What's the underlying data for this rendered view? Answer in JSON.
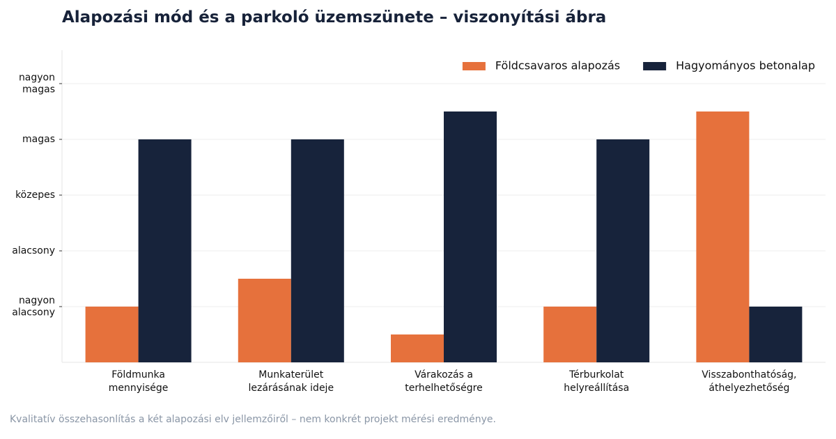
{
  "title": "Alapozási mód és a parkoló üzemszünete – viszonyítási ábra",
  "footnote": "Kvalitatív összehasonlítás a két alapozási elv jellemzőiről – nem konkrét projekt mérési eredménye.",
  "chart_data": {
    "type": "bar",
    "title": "Alapozási mód és a parkoló üzemszünete – viszonyítási ábra",
    "categories": [
      [
        "Földmunka",
        "mennyisége"
      ],
      [
        "Munkaterület",
        "lezárásának ideje"
      ],
      [
        "Várakozás a",
        "terhelhetőségre"
      ],
      [
        "Térburkolat",
        "helyreállítása"
      ],
      [
        "Visszabonthatóság,",
        "áthelyezhetőség"
      ]
    ],
    "y_ticks": [
      {
        "value": 1,
        "label": [
          "nagyon",
          "alacsony"
        ]
      },
      {
        "value": 2,
        "label": [
          "alacsony"
        ]
      },
      {
        "value": 3,
        "label": [
          "közepes"
        ]
      },
      {
        "value": 4,
        "label": [
          "magas"
        ]
      },
      {
        "value": 5,
        "label": [
          "nagyon",
          "magas"
        ]
      }
    ],
    "ylim": [
      0,
      5.6
    ],
    "grid": true,
    "legend_position": "top-right",
    "series": [
      {
        "name": "Földcsavaros alapozás",
        "color": "#e6713c",
        "values": [
          1,
          1.5,
          0.5,
          1,
          4.5
        ]
      },
      {
        "name": "Hagyományos betonalap",
        "color": "#17233b",
        "values": [
          4,
          4,
          4.5,
          4,
          1
        ]
      }
    ]
  }
}
